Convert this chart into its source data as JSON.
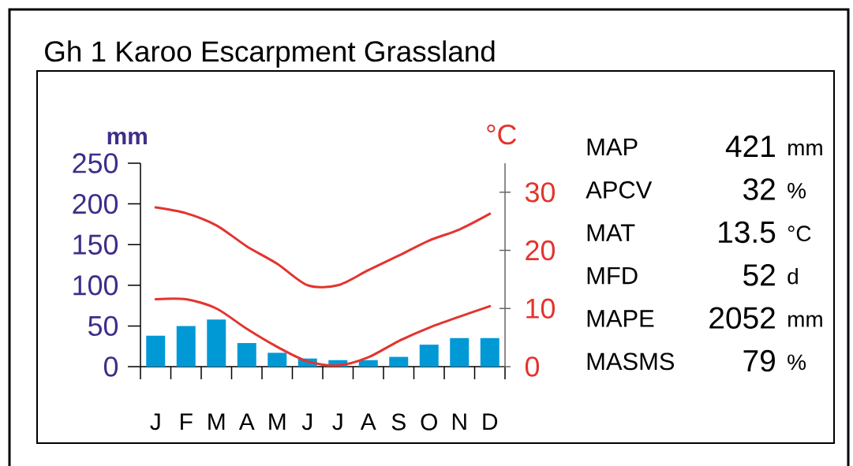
{
  "chart_data": {
    "type": "bar",
    "title": "Gh 1 Karoo Escarpment Grassland",
    "ylabel": "mm",
    "y2label": "°C",
    "categories": [
      "J",
      "F",
      "M",
      "A",
      "M",
      "J",
      "J",
      "A",
      "S",
      "O",
      "N",
      "D"
    ],
    "ylim": [
      0,
      250
    ],
    "yticks": [
      0,
      50,
      100,
      150,
      200,
      250
    ],
    "y2lim": [
      0,
      35
    ],
    "y2ticks": [
      0,
      10,
      20,
      30
    ],
    "marker": "none",
    "series": [
      {
        "color": "#0099d6",
        "values": [
          38,
          50,
          58,
          29,
          17,
          10,
          8,
          8,
          12,
          27,
          35,
          35
        ]
      },
      {
        "type": "line",
        "axis": "y2",
        "color": "#e3342f",
        "values": [
          27.4,
          26.4,
          24.3,
          20.7,
          17.7,
          14.0,
          14.0,
          16.6,
          19.1,
          21.7,
          23.6,
          26.3
        ]
      },
      {
        "type": "line",
        "axis": "y2",
        "color": "#e3342f",
        "values": [
          11.6,
          11.6,
          10.0,
          6.5,
          3.4,
          0.9,
          0.2,
          1.6,
          4.4,
          6.7,
          8.6,
          10.4
        ]
      }
    ],
    "annotations": [
      "MAP",
      "421",
      "mm",
      "APCV",
      "32",
      "%",
      "MAT",
      "13.5",
      "°C",
      "MFD",
      "52",
      "d",
      "MAPE",
      "2052",
      "mm",
      "MASMS",
      "79",
      "%"
    ]
  }
}
